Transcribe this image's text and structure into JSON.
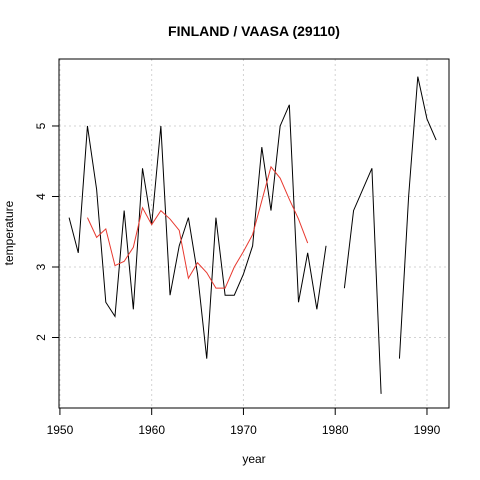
{
  "chart_data": {
    "type": "line",
    "title": "FINLAND / VAASA (29110)",
    "xlabel": "year",
    "ylabel": "temperature",
    "xlim": [
      1949.9,
      1992.4
    ],
    "ylim": [
      1.0,
      5.95
    ],
    "xticks": [
      1950,
      1960,
      1970,
      1980,
      1990
    ],
    "yticks": [
      2,
      3,
      4,
      5
    ],
    "grid": true,
    "legend": "none",
    "series": [
      {
        "color": "#000000",
        "points": [
          [
            1951,
            3.7
          ],
          [
            1952,
            3.2
          ],
          [
            1953,
            5.0
          ],
          [
            1954,
            4.1
          ],
          [
            1955,
            2.5
          ],
          [
            1956,
            2.3
          ],
          [
            1957,
            3.8
          ],
          [
            1958,
            2.4
          ],
          [
            1959,
            4.4
          ],
          [
            1960,
            3.6
          ],
          [
            1961,
            5.0
          ],
          [
            1962,
            2.6
          ],
          [
            1963,
            3.3
          ],
          [
            1964,
            3.7
          ],
          [
            1965,
            2.9
          ],
          [
            1966,
            1.7
          ],
          [
            1967,
            3.7
          ],
          [
            1968,
            2.6
          ],
          [
            1969,
            2.6
          ],
          [
            1970,
            2.9
          ],
          [
            1971,
            3.3
          ],
          [
            1972,
            4.7
          ],
          [
            1973,
            3.8
          ],
          [
            1974,
            5.0
          ],
          [
            1975,
            5.3
          ],
          [
            1976,
            2.5
          ],
          [
            1977,
            3.2
          ],
          [
            1978,
            2.4
          ],
          [
            1979,
            3.3
          ],
          [
            1980,
            null
          ],
          [
            1981,
            2.7
          ],
          [
            1982,
            3.8
          ],
          [
            1983,
            4.1
          ],
          [
            1984,
            4.4
          ],
          [
            1985,
            1.2
          ],
          [
            1986,
            null
          ],
          [
            1987,
            1.7
          ],
          [
            1988,
            4.0
          ],
          [
            1989,
            5.7
          ],
          [
            1990,
            5.1
          ],
          [
            1991,
            4.8
          ]
        ]
      },
      {
        "color": "#e8392f",
        "points": [
          [
            1953,
            3.7
          ],
          [
            1954,
            3.42
          ],
          [
            1955,
            3.54
          ],
          [
            1956,
            3.02
          ],
          [
            1957,
            3.08
          ],
          [
            1958,
            3.28
          ],
          [
            1959,
            3.84
          ],
          [
            1960,
            3.6
          ],
          [
            1961,
            3.8
          ],
          [
            1962,
            3.68
          ],
          [
            1963,
            3.52
          ],
          [
            1964,
            2.84
          ],
          [
            1965,
            3.06
          ],
          [
            1966,
            2.92
          ],
          [
            1967,
            2.7
          ],
          [
            1968,
            2.7
          ],
          [
            1969,
            3.0
          ],
          [
            1970,
            3.22
          ],
          [
            1971,
            3.46
          ],
          [
            1972,
            3.94
          ],
          [
            1973,
            4.42
          ],
          [
            1974,
            4.26
          ],
          [
            1975,
            3.96
          ],
          [
            1976,
            3.68
          ],
          [
            1977,
            3.34
          ]
        ]
      }
    ]
  }
}
